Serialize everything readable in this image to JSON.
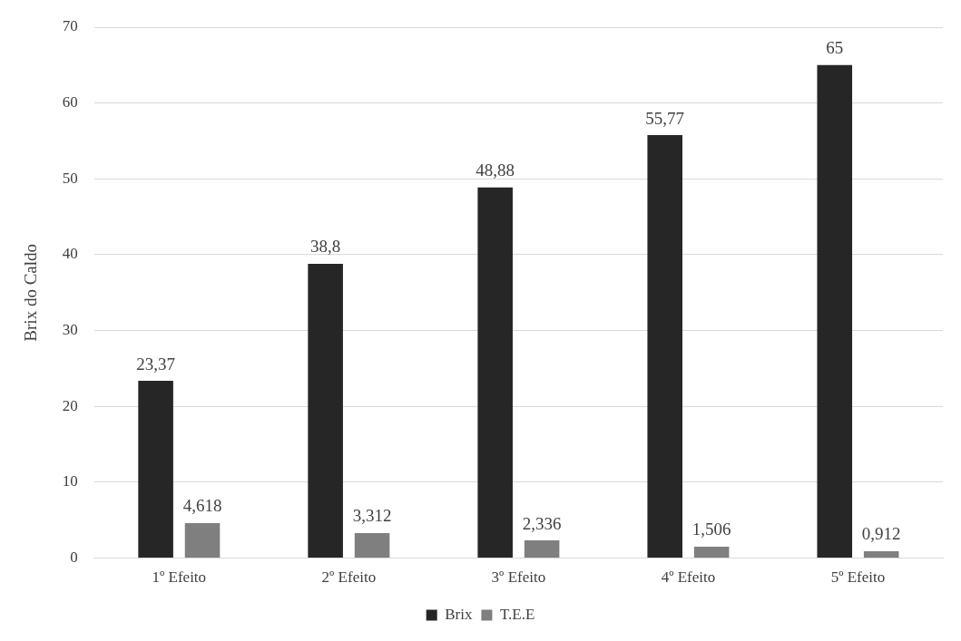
{
  "chart_data": {
    "type": "bar",
    "ylabel": "Brix do Caldo",
    "categories": [
      "1º Efeito",
      "2º Efeito",
      "3º Efeito",
      "4º Efeito",
      "5º Efeito"
    ],
    "series": [
      {
        "name": "Brix",
        "color": "#262626",
        "values": [
          23.37,
          38.8,
          48.88,
          55.77,
          65
        ],
        "value_labels": [
          "23,37",
          "38,8",
          "48,88",
          "55,77",
          "65"
        ]
      },
      {
        "name": "T.E.E",
        "color": "#7f7f7f",
        "values": [
          4.618,
          3.312,
          2.336,
          1.506,
          0.912
        ],
        "value_labels": [
          "4,618",
          "3,312",
          "2,336",
          "1,506",
          "0,912"
        ]
      }
    ],
    "ylim": [
      0,
      70
    ],
    "yticks": [
      0,
      10,
      20,
      30,
      40,
      50,
      60,
      70
    ],
    "grid": "y",
    "legend": "bottom"
  }
}
